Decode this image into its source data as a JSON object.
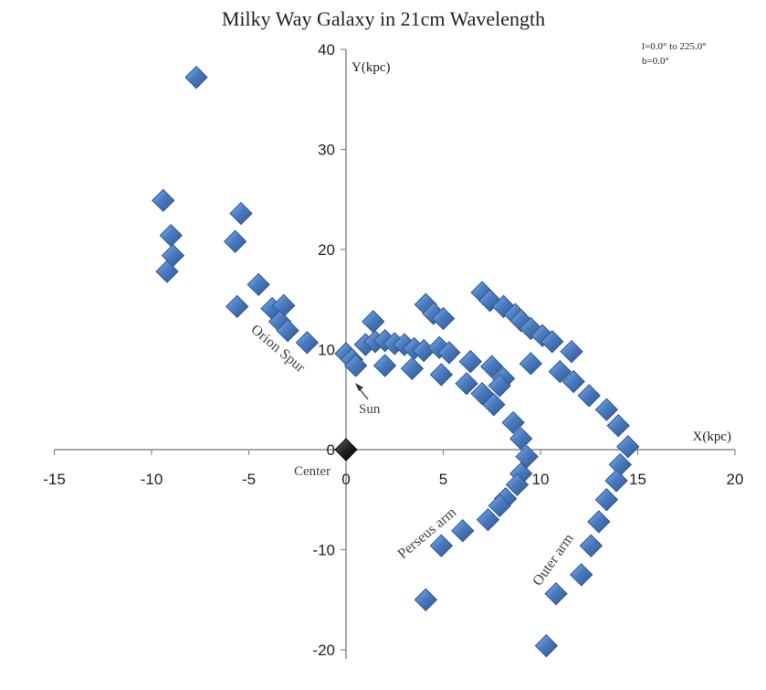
{
  "chart_data": {
    "type": "scatter",
    "title": "Milky Way Galaxy in 21cm Wavelength",
    "xlabel": "X(kpc)",
    "ylabel": "Y(kpc)",
    "xlim": [
      -15,
      20
    ],
    "ylim": [
      -20,
      40
    ],
    "x_ticks": [
      "-15",
      "-10",
      "-5",
      "0",
      "5",
      "10",
      "15",
      "20"
    ],
    "y_ticks": [
      "-20",
      "-10",
      "0",
      "10",
      "20",
      "30",
      "40"
    ],
    "grid": false,
    "info_lines": [
      "l=0.0° to 225.0°",
      "b=0.0°"
    ],
    "annotations": {
      "orion": "Orion Spur",
      "sun": "Sun",
      "center": "Center",
      "perseus": "Perseus arm",
      "outer": "Outer arm"
    },
    "colors": {
      "marker": "#4a7bc0",
      "marker_edge": "#2f5996",
      "center_marker": "#111111"
    },
    "center_point": {
      "x": 0,
      "y": 0
    },
    "points": [
      {
        "x": -7.7,
        "y": 37.2
      },
      {
        "x": -9.4,
        "y": 24.9
      },
      {
        "x": -9.0,
        "y": 21.4
      },
      {
        "x": -8.9,
        "y": 19.4
      },
      {
        "x": -9.2,
        "y": 17.8
      },
      {
        "x": -5.4,
        "y": 23.6
      },
      {
        "x": -5.7,
        "y": 20.8
      },
      {
        "x": -4.5,
        "y": 16.5
      },
      {
        "x": -5.6,
        "y": 14.3
      },
      {
        "x": -3.8,
        "y": 14.1
      },
      {
        "x": -3.2,
        "y": 14.4
      },
      {
        "x": -3.4,
        "y": 12.8
      },
      {
        "x": -3.0,
        "y": 11.9
      },
      {
        "x": -2.0,
        "y": 10.7
      },
      {
        "x": 1.4,
        "y": 12.8
      },
      {
        "x": 0.0,
        "y": 9.6
      },
      {
        "x": 0.3,
        "y": 9.0
      },
      {
        "x": 0.5,
        "y": 8.4
      },
      {
        "x": 1.0,
        "y": 10.5
      },
      {
        "x": 1.5,
        "y": 10.8
      },
      {
        "x": 2.0,
        "y": 10.9
      },
      {
        "x": 2.5,
        "y": 10.6
      },
      {
        "x": 3.0,
        "y": 10.5
      },
      {
        "x": 3.5,
        "y": 10.1
      },
      {
        "x": 4.0,
        "y": 9.9
      },
      {
        "x": 2.0,
        "y": 8.4
      },
      {
        "x": 3.4,
        "y": 8.1
      },
      {
        "x": 4.1,
        "y": 14.5
      },
      {
        "x": 4.5,
        "y": 13.6
      },
      {
        "x": 5.0,
        "y": 13.1
      },
      {
        "x": 4.8,
        "y": 10.2
      },
      {
        "x": 5.3,
        "y": 9.7
      },
      {
        "x": 6.4,
        "y": 8.8
      },
      {
        "x": 4.9,
        "y": 7.5
      },
      {
        "x": 6.2,
        "y": 6.6
      },
      {
        "x": 7.0,
        "y": 5.6
      },
      {
        "x": 7.6,
        "y": 4.5
      },
      {
        "x": 7.5,
        "y": 8.3
      },
      {
        "x": 8.1,
        "y": 7.1
      },
      {
        "x": 7.9,
        "y": 6.4
      },
      {
        "x": 8.6,
        "y": 2.7
      },
      {
        "x": 9.0,
        "y": 1.1
      },
      {
        "x": 9.3,
        "y": -0.7
      },
      {
        "x": 9.0,
        "y": -2.4
      },
      {
        "x": 8.8,
        "y": -3.5
      },
      {
        "x": 8.2,
        "y": -4.9
      },
      {
        "x": 7.9,
        "y": -5.6
      },
      {
        "x": 7.3,
        "y": -7.0
      },
      {
        "x": 6.0,
        "y": -8.1
      },
      {
        "x": 4.9,
        "y": -9.6
      },
      {
        "x": 4.1,
        "y": -15.0
      },
      {
        "x": 7.0,
        "y": 15.7
      },
      {
        "x": 7.4,
        "y": 14.9
      },
      {
        "x": 8.1,
        "y": 14.3
      },
      {
        "x": 8.7,
        "y": 13.5
      },
      {
        "x": 9.0,
        "y": 12.9
      },
      {
        "x": 9.5,
        "y": 12.1
      },
      {
        "x": 10.1,
        "y": 11.4
      },
      {
        "x": 10.6,
        "y": 10.8
      },
      {
        "x": 11.6,
        "y": 9.8
      },
      {
        "x": 9.5,
        "y": 8.6
      },
      {
        "x": 11.0,
        "y": 7.8
      },
      {
        "x": 11.7,
        "y": 6.8
      },
      {
        "x": 12.5,
        "y": 5.4
      },
      {
        "x": 13.4,
        "y": 4.0
      },
      {
        "x": 14.0,
        "y": 2.4
      },
      {
        "x": 14.5,
        "y": 0.3
      },
      {
        "x": 14.1,
        "y": -1.5
      },
      {
        "x": 13.9,
        "y": -3.1
      },
      {
        "x": 13.4,
        "y": -5.0
      },
      {
        "x": 13.0,
        "y": -7.2
      },
      {
        "x": 12.6,
        "y": -9.6
      },
      {
        "x": 12.1,
        "y": -12.5
      },
      {
        "x": 10.8,
        "y": -14.4
      },
      {
        "x": 10.3,
        "y": -19.6
      }
    ]
  }
}
